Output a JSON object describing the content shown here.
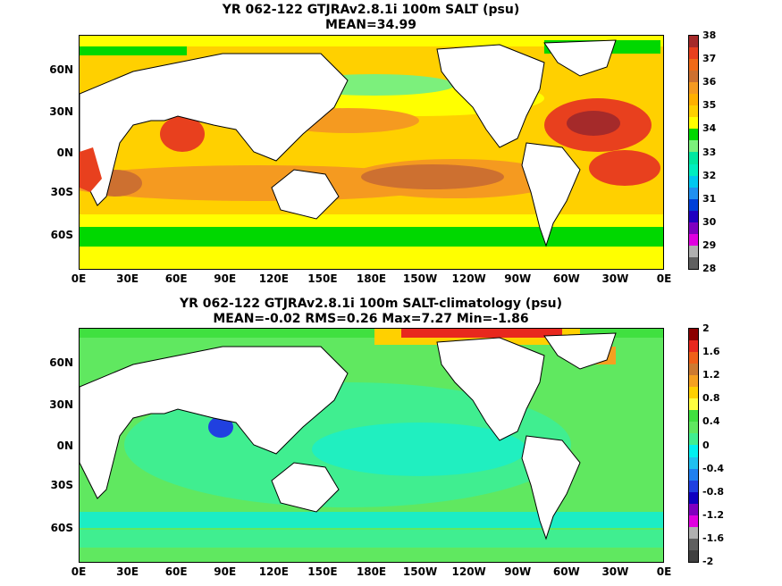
{
  "panel1": {
    "title_line1": "YR 062-122 GTJRAv2.8.1i 100m SALT (psu)",
    "title_line2": "MEAN=34.99",
    "colorbar_labels": [
      "38",
      "37",
      "36",
      "35",
      "34",
      "33",
      "32",
      "31",
      "30",
      "29",
      "28"
    ],
    "colorbar_colors": [
      "#a52a2a",
      "#e8401e",
      "#f06a18",
      "#cd7030",
      "#f59a20",
      "#ffb000",
      "#ffd000",
      "#ffff00",
      "#00d800",
      "#7cf07c",
      "#00e8a0",
      "#00eec0",
      "#00c8f0",
      "#2090f0",
      "#0040d8",
      "#2000c0",
      "#8000c0",
      "#e000e0",
      "#b0b0b0",
      "#606060"
    ]
  },
  "panel2": {
    "title_line1": "YR 062-122 GTJRAv2.8.1i 100m SALT-climatology (psu)",
    "title_line2": "MEAN=-0.02   RMS=0.26   Max=7.27   Min=-1.86",
    "colorbar_labels": [
      "2",
      "1.6",
      "1.2",
      "0.8",
      "0.4",
      "0",
      "-0.4",
      "-0.8",
      "-1.2",
      "-1.6",
      "-2"
    ],
    "colorbar_colors": [
      "#8b0000",
      "#e8281e",
      "#f06018",
      "#cd7a30",
      "#f5a020",
      "#ffd000",
      "#ffff40",
      "#40e040",
      "#60e860",
      "#40ee90",
      "#00f0f0",
      "#20c0f0",
      "#2080f0",
      "#2040e0",
      "#1000c0",
      "#8000c0",
      "#e000e0",
      "#b0b0b0",
      "#606060",
      "#404040"
    ]
  },
  "y_ticks": [
    "60N",
    "30N",
    "0N",
    "30S",
    "60S"
  ],
  "x_ticks": [
    "0E",
    "30E",
    "60E",
    "90E",
    "120E",
    "150E",
    "180E",
    "150W",
    "120W",
    "90W",
    "60W",
    "30W",
    "0E"
  ]
}
